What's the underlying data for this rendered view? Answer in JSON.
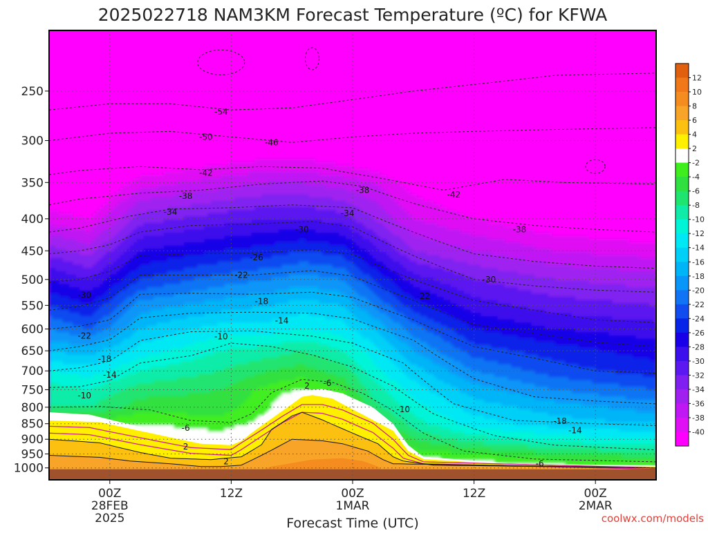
{
  "page_title": "2025022718 NAM3KM Forecast Temperature (ºC) for KFWA",
  "credit": "coolwx.com/models",
  "chart_data": {
    "type": "heatmap",
    "title": "2025022718 NAM3KM Forecast Temperature (ºC) for KFWA",
    "xlabel": "Forecast Time (UTC)",
    "ylabel": "",
    "x_unit": "hours since 00Z 28FEB 2025",
    "xlim": [
      -6,
      54
    ],
    "y_scale": "log pressure (hPa)",
    "ylim": [
      1045,
      200
    ],
    "grid": true,
    "y_ticks": [
      250,
      300,
      350,
      400,
      450,
      500,
      550,
      600,
      650,
      700,
      750,
      800,
      850,
      900,
      950,
      1000
    ],
    "x_ticks": [
      {
        "x": 0,
        "lines": [
          "00Z",
          "28FEB",
          "2025"
        ]
      },
      {
        "x": 12,
        "lines": [
          "12Z"
        ]
      },
      {
        "x": 24,
        "lines": [
          "00Z",
          "1MAR"
        ]
      },
      {
        "x": 36,
        "lines": [
          "12Z"
        ]
      },
      {
        "x": 48,
        "lines": [
          "00Z",
          "2MAR"
        ]
      }
    ],
    "colorbar": {
      "placement": "right",
      "label_values": [
        12,
        10,
        8,
        6,
        4,
        2,
        -2,
        -4,
        -6,
        -8,
        -10,
        -12,
        -14,
        -16,
        -18,
        -20,
        -22,
        -24,
        -26,
        -28,
        -30,
        -32,
        -34,
        -36,
        -38,
        -40
      ],
      "bins": [
        {
          "min": 12,
          "max": 14,
          "color": "#e06010"
        },
        {
          "min": 10,
          "max": 12,
          "color": "#f07818"
        },
        {
          "min": 8,
          "max": 10,
          "color": "#f48c20"
        },
        {
          "min": 6,
          "max": 8,
          "color": "#f8a428"
        },
        {
          "min": 4,
          "max": 6,
          "color": "#fcc010"
        },
        {
          "min": 2,
          "max": 4,
          "color": "#fff000"
        },
        {
          "min": -2,
          "max": 2,
          "color": "#ffffff"
        },
        {
          "min": -4,
          "max": -2,
          "color": "#40ee20"
        },
        {
          "min": -6,
          "max": -4,
          "color": "#30e040"
        },
        {
          "min": -8,
          "max": -6,
          "color": "#20e470"
        },
        {
          "min": -10,
          "max": -8,
          "color": "#10eca8"
        },
        {
          "min": -12,
          "max": -10,
          "color": "#00f4d8"
        },
        {
          "min": -14,
          "max": -12,
          "color": "#00e8f4"
        },
        {
          "min": -16,
          "max": -14,
          "color": "#00d0f8"
        },
        {
          "min": -18,
          "max": -16,
          "color": "#00b4f8"
        },
        {
          "min": -20,
          "max": -18,
          "color": "#0896f8"
        },
        {
          "min": -22,
          "max": -20,
          "color": "#1074f4"
        },
        {
          "min": -24,
          "max": -22,
          "color": "#104cf0"
        },
        {
          "min": -26,
          "max": -24,
          "color": "#0824e8"
        },
        {
          "min": -28,
          "max": -26,
          "color": "#1800e8"
        },
        {
          "min": -30,
          "max": -28,
          "color": "#3c10ec"
        },
        {
          "min": -32,
          "max": -30,
          "color": "#5c18f0"
        },
        {
          "min": -34,
          "max": -32,
          "color": "#8020f0"
        },
        {
          "min": -36,
          "max": -34,
          "color": "#a020f0"
        },
        {
          "min": -38,
          "max": -36,
          "color": "#c018f4"
        },
        {
          "min": -40,
          "max": -38,
          "color": "#e010f4"
        },
        {
          "min": -60,
          "max": -40,
          "color": "#ff00ff"
        }
      ]
    },
    "ground_color": "#a0522d",
    "contour_labels": [
      {
        "text": "-54",
        "x": 11,
        "y": 270
      },
      {
        "text": "-50",
        "x": 9.5,
        "y": 296
      },
      {
        "text": "-46",
        "x": 16,
        "y": 302
      },
      {
        "text": "-42",
        "x": 9.5,
        "y": 338
      },
      {
        "text": "-42",
        "x": 34,
        "y": 366
      },
      {
        "text": "-38",
        "x": 7.5,
        "y": 368
      },
      {
        "text": "-38",
        "x": 25,
        "y": 360
      },
      {
        "text": "-38",
        "x": 40.5,
        "y": 416
      },
      {
        "text": "-34",
        "x": 6,
        "y": 390
      },
      {
        "text": "-34",
        "x": 23.5,
        "y": 392
      },
      {
        "text": "-30",
        "x": 19,
        "y": 416
      },
      {
        "text": "-30",
        "x": 37.5,
        "y": 500
      },
      {
        "text": "-30",
        "x": -2.5,
        "y": 530
      },
      {
        "text": "-26",
        "x": 14.5,
        "y": 461
      },
      {
        "text": "-22",
        "x": 13,
        "y": 492
      },
      {
        "text": "-22",
        "x": 31,
        "y": 532
      },
      {
        "text": "-22",
        "x": -2.5,
        "y": 615
      },
      {
        "text": "-18",
        "x": 15,
        "y": 542
      },
      {
        "text": "-18",
        "x": 44.5,
        "y": 842
      },
      {
        "text": "-18",
        "x": -0.5,
        "y": 670
      },
      {
        "text": "-14",
        "x": 17,
        "y": 582
      },
      {
        "text": "-14",
        "x": 46,
        "y": 872
      },
      {
        "text": "-14",
        "x": 0,
        "y": 710
      },
      {
        "text": "-10",
        "x": 11,
        "y": 617
      },
      {
        "text": "-10",
        "x": 29,
        "y": 807
      },
      {
        "text": "-10",
        "x": -2.5,
        "y": 767
      },
      {
        "text": "-6",
        "x": 21.5,
        "y": 732
      },
      {
        "text": "-6",
        "x": 7.5,
        "y": 864
      },
      {
        "text": "-6",
        "x": 42.5,
        "y": 985
      },
      {
        "text": "2",
        "x": 19.5,
        "y": 740
      },
      {
        "text": "2",
        "x": 7.5,
        "y": 925
      },
      {
        "text": "2",
        "x": 11.5,
        "y": 977
      }
    ]
  }
}
